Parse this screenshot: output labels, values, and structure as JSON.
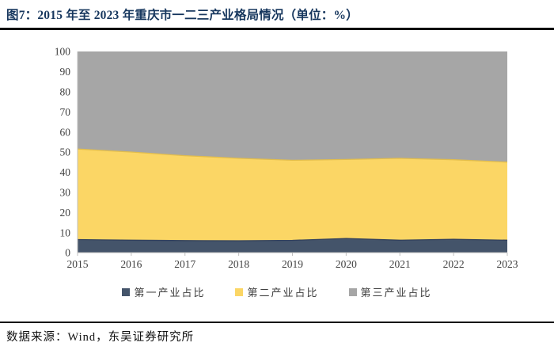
{
  "figure": {
    "title": "图7：2015 年至 2023 年重庆市一二三产业格局情况（单位：%）",
    "source": "数据来源：Wind，东吴证券研究所"
  },
  "colors": {
    "title_text": "#17375E",
    "divider": "#000000",
    "axis_line": "#BFBFBF",
    "axis_text": "#404040",
    "primary_area": "#44546A",
    "primary_edge": "#34425C",
    "secondary_area": "#FBD665",
    "secondary_edge": "#E2BD4C",
    "tertiary_area": "#A6A6A6"
  },
  "chart_data": {
    "type": "area",
    "stacked": true,
    "title": "",
    "xlabel": "",
    "ylabel": "",
    "x": [
      2015,
      2016,
      2017,
      2018,
      2019,
      2020,
      2021,
      2022,
      2023
    ],
    "series": [
      {
        "name": "第一产业占比",
        "color": "#44546A",
        "values": [
          6.5,
          6.2,
          6.0,
          5.9,
          6.1,
          7.0,
          6.2,
          6.6,
          6.2
        ]
      },
      {
        "name": "第二产业占比",
        "color": "#FBD665",
        "values": [
          45.0,
          43.8,
          42.2,
          41.0,
          39.8,
          39.3,
          40.7,
          39.6,
          38.8
        ]
      },
      {
        "name": "第三产业占比",
        "color": "#A6A6A6",
        "values": [
          48.5,
          50.0,
          51.8,
          53.1,
          54.1,
          53.7,
          53.1,
          53.8,
          55.0
        ]
      }
    ],
    "ylim": [
      0,
      100
    ],
    "y_tick_step": 10,
    "grid": false,
    "legend_position": "bottom"
  }
}
